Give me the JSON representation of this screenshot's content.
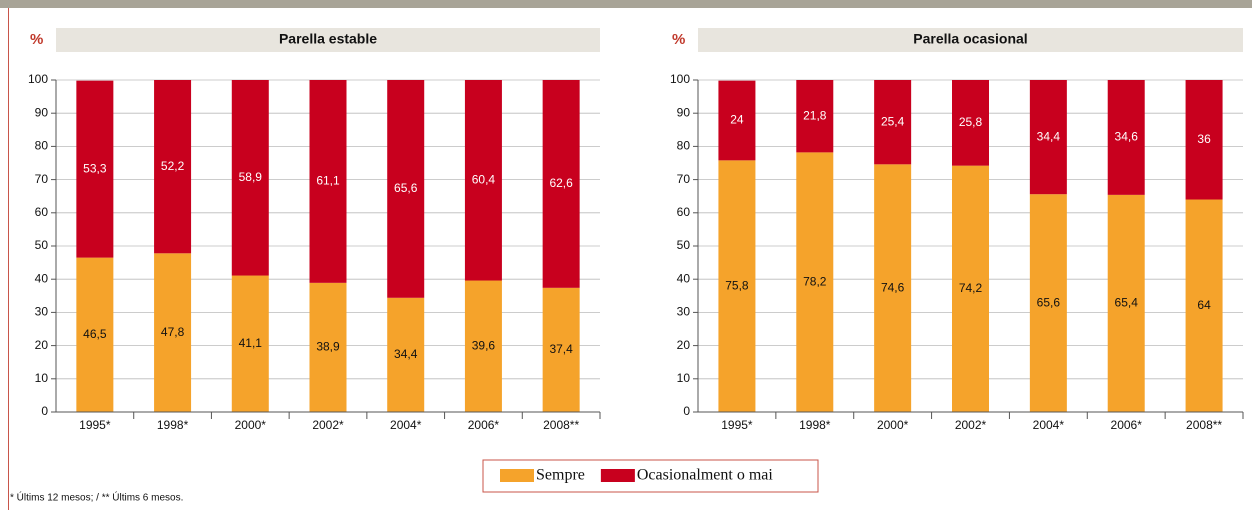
{
  "footnote": "* Últims 12 mesos; / ** Últims 6 mesos.",
  "chart_data": [
    {
      "type": "bar",
      "stacked": true,
      "title": "Parella estable",
      "y_label": "%",
      "categories": [
        "1995*",
        "1998*",
        "2000*",
        "2002*",
        "2004*",
        "2006*",
        "2008**"
      ],
      "series": [
        {
          "name": "Sempre",
          "color": "#f5a32b",
          "values": [
            46.5,
            47.8,
            41.1,
            38.9,
            34.4,
            39.6,
            37.4
          ],
          "value_labels": [
            "46,5",
            "47,8",
            "41,1",
            "38,9",
            "34,4",
            "39,6",
            "37,4"
          ]
        },
        {
          "name": "Ocasionalment o mai",
          "color": "#c8001e",
          "values": [
            53.3,
            52.2,
            58.9,
            61.1,
            65.6,
            60.4,
            62.6
          ],
          "value_labels": [
            "53,3",
            "52,2",
            "58,9",
            "61,1",
            "65,6",
            "60,4",
            "62,6"
          ]
        }
      ],
      "ylim": [
        0,
        100
      ],
      "yticks": [
        0,
        10,
        20,
        30,
        40,
        50,
        60,
        70,
        80,
        90,
        100
      ],
      "grid": true
    },
    {
      "type": "bar",
      "stacked": true,
      "title": "Parella ocasional",
      "y_label": "%",
      "categories": [
        "1995*",
        "1998*",
        "2000*",
        "2002*",
        "2004*",
        "2006*",
        "2008**"
      ],
      "series": [
        {
          "color": "#f5a32b",
          "values": [
            75.8,
            78.2,
            74.6,
            74.2,
            65.6,
            65.4,
            64
          ],
          "value_labels": [
            "75,8",
            "78,2",
            "74,6",
            "74,2",
            "65,6",
            "65,4",
            "64"
          ]
        },
        {
          "color": "#c8001e",
          "values": [
            24,
            21.8,
            25.4,
            25.8,
            34.4,
            34.6,
            36
          ],
          "value_labels": [
            "24",
            "21,8",
            "25,4",
            "25,8",
            "34,4",
            "34,6",
            "36"
          ]
        }
      ],
      "ylim": [
        0,
        100
      ],
      "yticks": [
        0,
        10,
        20,
        30,
        40,
        50,
        60,
        70,
        80,
        90,
        100
      ],
      "grid": true
    }
  ]
}
